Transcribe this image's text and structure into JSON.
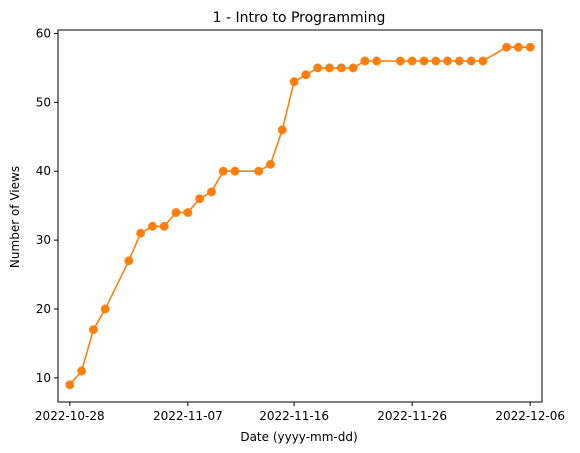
{
  "chart_data": {
    "type": "line",
    "title": "1 - Intro to Programming",
    "xlabel": "Date (yyyy-mm-dd)",
    "ylabel": "Number of Views",
    "x_type": "date",
    "xlim": [
      "2022-10-27",
      "2022-12-07"
    ],
    "ylim": [
      6.5,
      60.5
    ],
    "xticks": [
      "2022-10-28",
      "2022-11-07",
      "2022-11-16",
      "2022-11-26",
      "2022-12-06"
    ],
    "yticks": [
      10,
      20,
      30,
      40,
      50,
      60
    ],
    "grid": false,
    "colors": {
      "line": "#1f77b4",
      "marker": "#ff7f0e"
    },
    "series": [
      {
        "marker": "circle",
        "x": [
          "2022-10-28",
          "2022-10-29",
          "2022-10-30",
          "2022-10-31",
          "2022-11-02",
          "2022-11-03",
          "2022-11-04",
          "2022-11-05",
          "2022-11-06",
          "2022-11-07",
          "2022-11-08",
          "2022-11-09",
          "2022-11-10",
          "2022-11-11",
          "2022-11-13",
          "2022-11-14",
          "2022-11-15",
          "2022-11-16",
          "2022-11-17",
          "2022-11-18",
          "2022-11-19",
          "2022-11-20",
          "2022-11-21",
          "2022-11-22",
          "2022-11-23",
          "2022-11-25",
          "2022-11-26",
          "2022-11-27",
          "2022-11-28",
          "2022-11-29",
          "2022-11-30",
          "2022-12-01",
          "2022-12-02",
          "2022-12-04",
          "2022-12-05",
          "2022-12-06"
        ],
        "values": [
          9,
          11,
          17,
          20,
          27,
          31,
          32,
          32,
          34,
          34,
          36,
          37,
          40,
          40,
          40,
          41,
          46,
          53,
          54,
          55,
          55,
          55,
          55,
          56,
          56,
          56,
          56,
          56,
          56,
          56,
          56,
          56,
          56,
          58,
          58,
          58
        ]
      }
    ]
  }
}
